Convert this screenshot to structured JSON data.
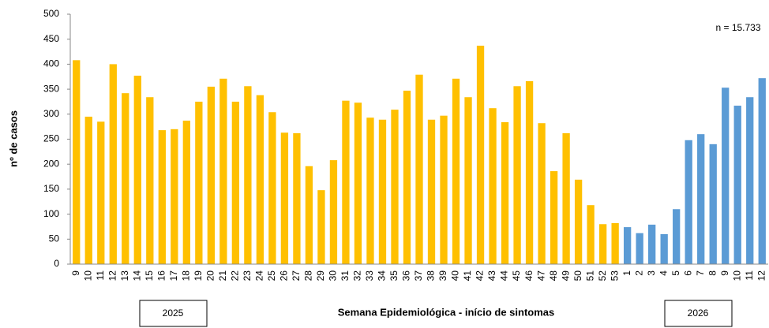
{
  "chart_data": {
    "type": "bar",
    "ylabel": "nº de casos",
    "xlabel": "Semana Epidemiológica - início de sintomas",
    "annotation": "n = 15.733",
    "categories": [
      "9",
      "10",
      "11",
      "12",
      "13",
      "14",
      "15",
      "16",
      "17",
      "18",
      "19",
      "20",
      "21",
      "22",
      "23",
      "24",
      "25",
      "26",
      "27",
      "28",
      "29",
      "30",
      "31",
      "32",
      "33",
      "34",
      "35",
      "36",
      "37",
      "38",
      "39",
      "40",
      "41",
      "42",
      "43",
      "44",
      "45",
      "46",
      "47",
      "48",
      "49",
      "50",
      "51",
      "52",
      "53",
      "1",
      "2",
      "3",
      "4",
      "5",
      "6",
      "7",
      "8",
      "9",
      "10",
      "11",
      "12"
    ],
    "series": [
      {
        "name": "2025",
        "color": "#ffc000",
        "values": [
          408,
          295,
          285,
          400,
          342,
          377,
          334,
          268,
          270,
          287,
          325,
          355,
          371,
          325,
          356,
          338,
          304,
          263,
          262,
          196,
          148,
          208,
          327,
          323,
          293,
          289,
          309,
          347,
          379,
          289,
          297,
          371,
          334,
          437,
          312,
          284,
          356,
          366,
          282,
          186,
          262,
          169,
          118,
          80,
          82,
          null,
          null,
          null,
          null,
          null,
          null,
          null,
          null,
          null,
          null,
          null,
          null
        ]
      },
      {
        "name": "2026",
        "color": "#5b9bd5",
        "values": [
          null,
          null,
          null,
          null,
          null,
          null,
          null,
          null,
          null,
          null,
          null,
          null,
          null,
          null,
          null,
          null,
          null,
          null,
          null,
          null,
          null,
          null,
          null,
          null,
          null,
          null,
          null,
          null,
          null,
          null,
          null,
          null,
          null,
          null,
          null,
          null,
          null,
          null,
          null,
          null,
          null,
          null,
          null,
          null,
          null,
          74,
          62,
          79,
          60,
          110,
          248,
          260,
          240,
          353,
          317,
          334,
          372
        ]
      }
    ],
    "ylim": [
      0,
      500
    ],
    "yticks": [
      0,
      50,
      100,
      150,
      200,
      250,
      300,
      350,
      400,
      450,
      500
    ],
    "grid": false
  }
}
